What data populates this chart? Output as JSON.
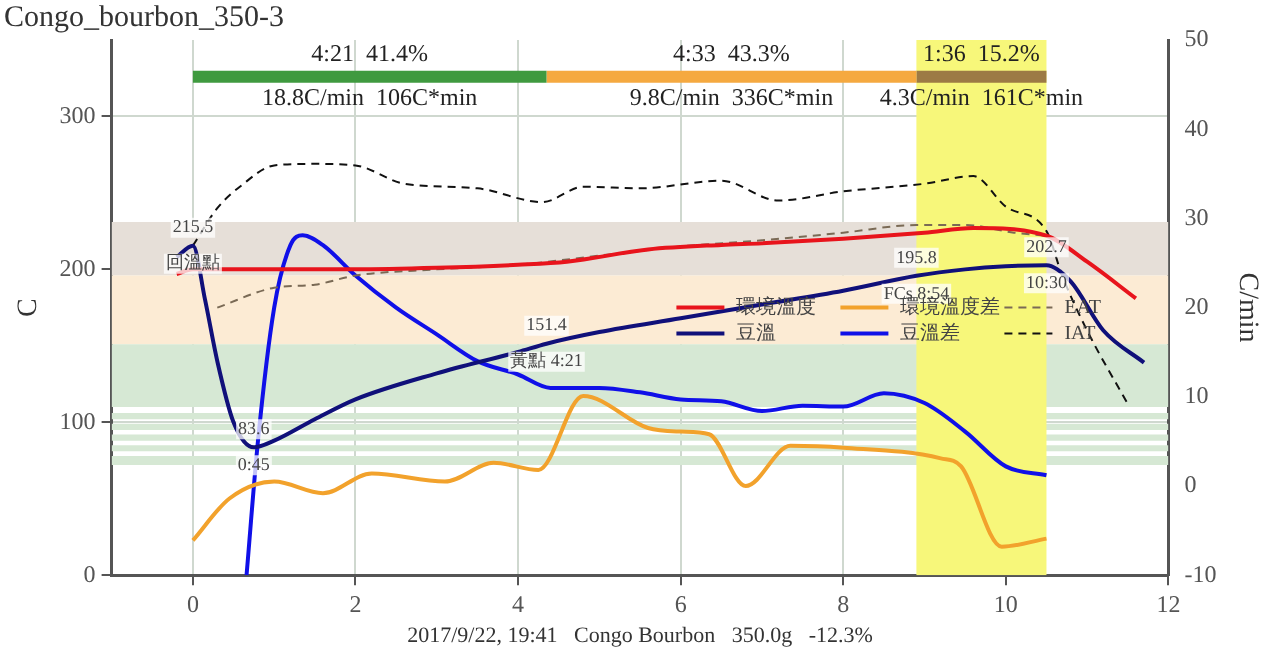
{
  "chart_data": {
    "type": "line",
    "title": "Congo_bourbon_350-3",
    "ylabel": "C",
    "y2label": "C/min",
    "xlim": [
      -1,
      12
    ],
    "xticks": [
      0,
      2,
      4,
      6,
      8,
      10,
      12
    ],
    "ylim": [
      0,
      350
    ],
    "yticks": [
      0,
      100,
      200,
      300
    ],
    "y2lim": [
      -10,
      50
    ],
    "y2ticks": [
      -10,
      0,
      10,
      20,
      30,
      40,
      50
    ],
    "grid": true,
    "legend": "right",
    "marker": "none",
    "series": [
      {
        "name": "環境溫度",
        "color": "#e8141c",
        "axis": "y",
        "line_style": "solid",
        "x": [
          -0.2,
          0,
          1,
          2,
          3,
          4,
          4.6,
          5.6,
          6.5,
          7,
          8,
          9,
          9.6,
          10.5,
          11,
          11.6
        ],
        "values": [
          197,
          200,
          200,
          200,
          201,
          203,
          205,
          213,
          216,
          217,
          220,
          224,
          227,
          222,
          205,
          181
        ]
      },
      {
        "name": "環境溫度差",
        "color": "#f2a22c",
        "axis": "y2",
        "line_style": "solid",
        "x": [
          0,
          0.45,
          1,
          1.6,
          2.2,
          3.1,
          3.7,
          4.25,
          4.8,
          5.6,
          6,
          6.35,
          6.8,
          7.35,
          8,
          9.2,
          9.45,
          9.95,
          10.5
        ],
        "values": [
          -6.1,
          -1.4,
          0.5,
          -0.8,
          1.4,
          0.5,
          2.6,
          1.8,
          10.1,
          6.5,
          6.1,
          5.8,
          0,
          4.5,
          4.3,
          3.1,
          2.2,
          -6.8,
          -5.9
        ]
      },
      {
        "name": "EAT",
        "color": "#7a6a55",
        "axis": "y",
        "line_style": "dashed",
        "x": [
          0.3,
          1,
          1.5,
          2,
          3,
          4,
          5,
          6,
          7,
          8,
          8.9,
          9.5,
          10.1,
          10.5
        ],
        "values": [
          175,
          188,
          190,
          196,
          200,
          203,
          209,
          215,
          219,
          224,
          229,
          229,
          224,
          222
        ]
      },
      {
        "name": "豆溫",
        "color": "#10107a",
        "axis": "y",
        "line_style": "solid",
        "x": [
          -0.2,
          0,
          0.15,
          0.3,
          0.5,
          0.75,
          1,
          1.5,
          2,
          3,
          4,
          4.35,
          5,
          6,
          7,
          8,
          8.9,
          9.5,
          10,
          10.5,
          10.8,
          11.2,
          11.7
        ],
        "values": [
          208,
          215.5,
          180,
          140,
          100,
          83.6,
          88,
          102,
          115,
          132,
          146,
          151.4,
          159,
          168,
          177,
          186,
          195.8,
          200,
          202,
          202.7,
          192,
          160,
          139
        ]
      },
      {
        "name": "豆溫差",
        "color": "#1010e8",
        "axis": "y2",
        "line_style": "solid",
        "x": [
          0.66,
          0.8,
          1,
          1.2,
          1.35,
          1.6,
          2,
          2.5,
          3,
          3.5,
          4,
          4.4,
          5,
          5.5,
          6,
          6.5,
          7,
          7.5,
          8,
          8.5,
          9,
          9.5,
          10,
          10.5
        ],
        "values": [
          -10,
          5,
          20,
          27,
          28.1,
          27,
          23.6,
          20,
          17,
          14,
          12.5,
          11,
          11,
          10.5,
          9.7,
          9.5,
          8.4,
          9,
          8.9,
          10.4,
          9.3,
          6.1,
          2.2,
          1.2
        ]
      },
      {
        "name": "IAT",
        "color": "#111111",
        "axis": "y",
        "line_style": "dashed",
        "x": [
          0,
          0.3,
          0.6,
          1,
          1.5,
          2,
          2.6,
          3.5,
          4.3,
          4.8,
          5.5,
          6.5,
          7.2,
          8,
          9,
          9.6,
          10,
          10.5,
          10.7,
          11,
          11.5
        ],
        "values": [
          215.5,
          240,
          255,
          268,
          269,
          268,
          256,
          253,
          244,
          254,
          253,
          258,
          245,
          251,
          256,
          261,
          241,
          225,
          195,
          160,
          112
        ]
      },
      {
        "color": "#3f9a3f",
        "axis": "y",
        "line_style": "solid",
        "x": [
          0,
          4.35
        ],
        "values": [
          326,
          326
        ]
      },
      {
        "color": "#f5a940",
        "axis": "y",
        "line_style": "solid",
        "x": [
          4.35,
          8.9
        ],
        "values": [
          326,
          326
        ]
      },
      {
        "color": "#9c7a45",
        "axis": "y",
        "line_style": "solid",
        "x": [
          8.9,
          10.5
        ],
        "values": [
          326,
          326
        ]
      }
    ],
    "bands": [
      {
        "axis": "y",
        "from": 196,
        "to": 231,
        "color": "#e6dfd8"
      },
      {
        "axis": "y",
        "from": 151,
        "to": 196,
        "color": "#fcebd4"
      },
      {
        "axis": "y",
        "from": 110,
        "to": 151,
        "color": "#d6e8d4"
      },
      {
        "axis": "y",
        "from": 102,
        "to": 106,
        "color": "#d6e8d4"
      },
      {
        "axis": "y",
        "from": 95,
        "to": 99,
        "color": "#d6e8d4"
      },
      {
        "axis": "y",
        "from": 88,
        "to": 92,
        "color": "#d6e8d4"
      },
      {
        "axis": "y",
        "from": 81,
        "to": 85,
        "color": "#d6e8d4"
      },
      {
        "axis": "y",
        "from": 72,
        "to": 78,
        "color": "#d6e8d4"
      },
      {
        "axis": "x",
        "from": 8.9,
        "to": 10.5,
        "color": "#f7f77a"
      }
    ],
    "annotations": [
      {
        "text": "4:21  41.4%",
        "x": 2.175,
        "y": 326
      },
      {
        "text": "18.8C/min  106C*min",
        "x": 2.175,
        "y": 326
      },
      {
        "text": "4:33  43.3%",
        "x": 6.625,
        "y": 326
      },
      {
        "text": "9.8C/min  336C*min",
        "x": 6.625,
        "y": 326
      },
      {
        "text": "1:36  15.2%",
        "x": 9.7,
        "y": 326
      },
      {
        "text": "4.3C/min  161C*min",
        "x": 9.7,
        "y": 326
      },
      {
        "text": "215.5",
        "x": 0,
        "y": 215.5
      },
      {
        "text": "回溫點",
        "x": 0,
        "y": 215.5
      },
      {
        "text": "83.6",
        "x": 0.75,
        "y": 83.6
      },
      {
        "text": "0:45",
        "x": 0.75,
        "y": 83.6
      },
      {
        "text": "151.4",
        "x": 4.35,
        "y": 151.4
      },
      {
        "text": "黃點 4:21",
        "x": 4.35,
        "y": 151.4
      },
      {
        "text": "195.8",
        "x": 8.9,
        "y": 195.8
      },
      {
        "text": "FCs 8:54",
        "x": 8.9,
        "y": 195.8
      },
      {
        "text": "202.7",
        "x": 10.5,
        "y": 202.7
      },
      {
        "text": "10:30",
        "x": 10.5,
        "y": 202.7
      },
      "2017/9/22, 19:41   Congo Bourbon   350.0g   -12.3%"
    ]
  }
}
